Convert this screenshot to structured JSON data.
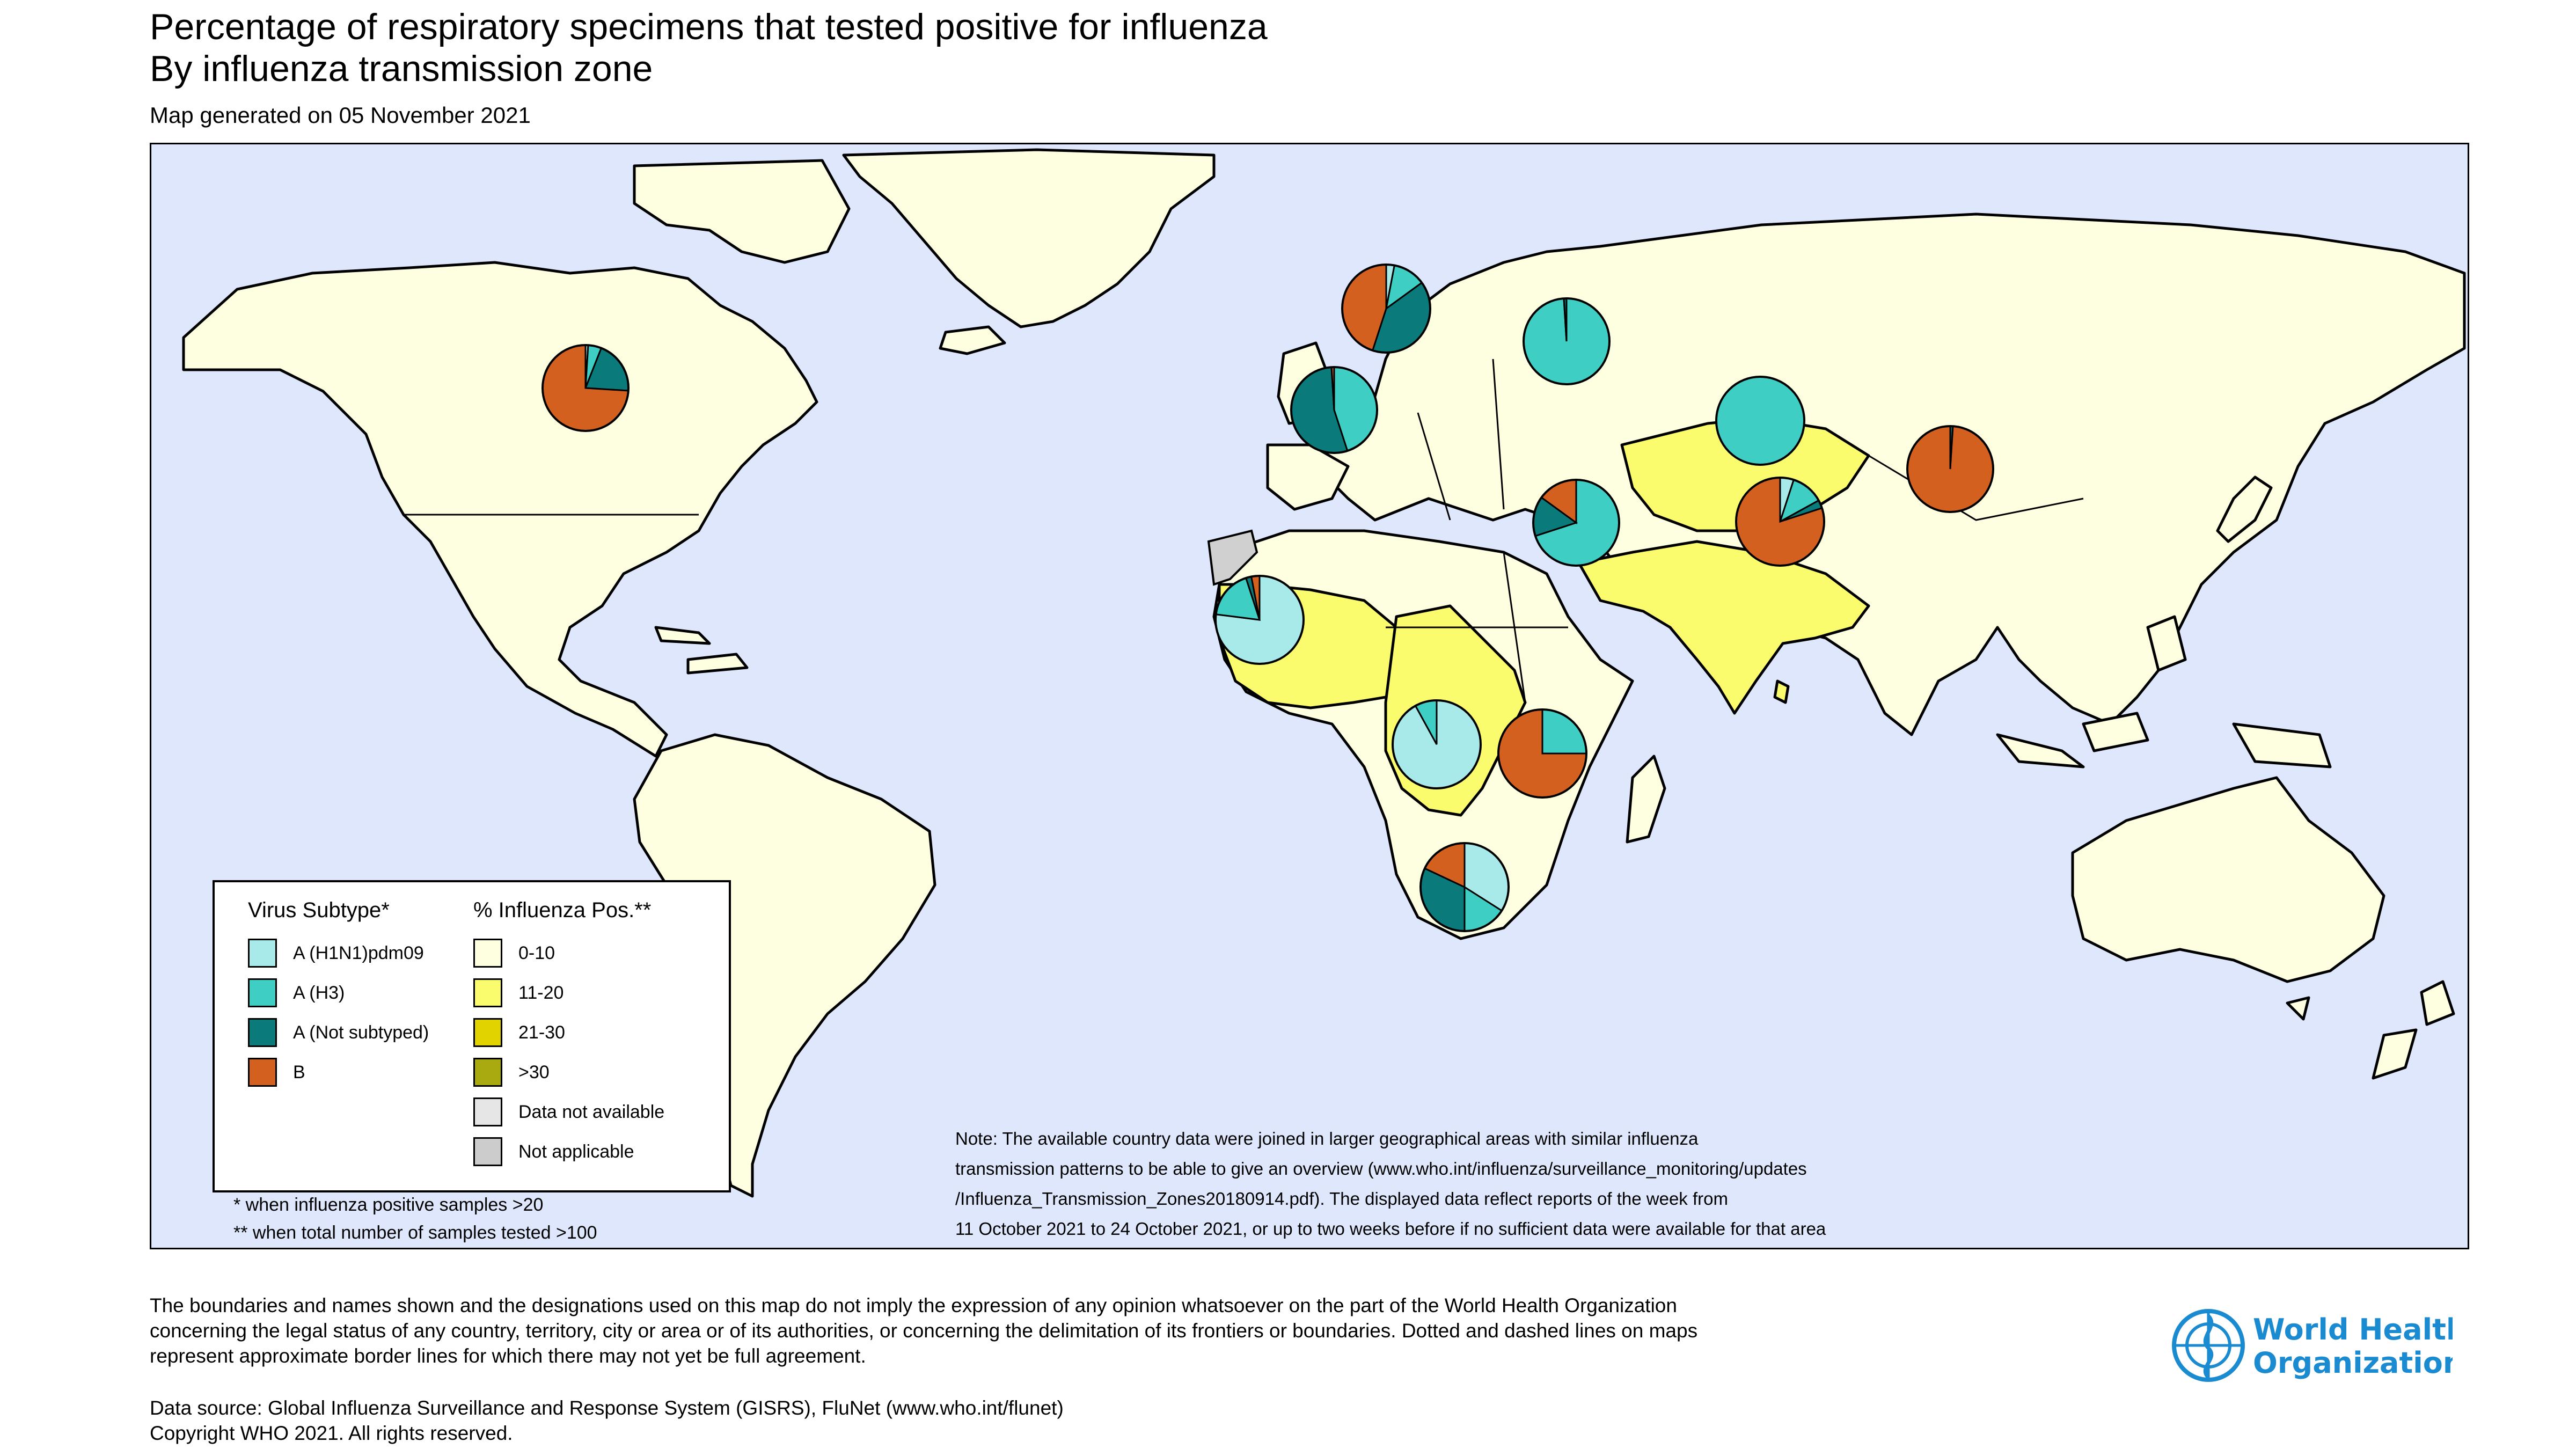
{
  "header": {
    "title_line1": "Percentage of respiratory specimens that tested positive for influenza",
    "title_line2": "By influenza transmission zone",
    "generated": "Map generated on 05 November 2021"
  },
  "legend": {
    "subtype_heading": "Virus Subtype*",
    "positivity_heading": "% Influenza Pos.**",
    "subtypes": [
      {
        "label": "A (H1N1)pdm09",
        "color": "#a8eaea"
      },
      {
        "label": "A (H3)",
        "color": "#3fcec4"
      },
      {
        "label": "A (Not subtyped)",
        "color": "#0b7a7a"
      },
      {
        "label": "B",
        "color": "#d4601f"
      }
    ],
    "positivity": [
      {
        "label": "0-10",
        "color": "#fefee0"
      },
      {
        "label": "11-20",
        "color": "#fbfb6e"
      },
      {
        "label": "21-30",
        "color": "#e1d300"
      },
      {
        "label": ">30",
        "color": "#a8aa10"
      },
      {
        "label": "Data not available",
        "color": "#e6e6e6"
      },
      {
        "label": "Not applicable",
        "color": "#cccccc"
      }
    ],
    "footnote1": "* when influenza positive samples >20",
    "footnote2": "** when total number of samples tested >100"
  },
  "note": {
    "line1": "Note: The available country data were joined in larger geographical areas with similar influenza",
    "line2": "transmission patterns to be able to give an overview (www.who.int/influenza/surveillance_monitoring/updates",
    "line3": "/Influenza_Transmission_Zones20180914.pdf). The displayed data reflect reports of the week from",
    "line4": "11 October 2021 to 24 October 2021, or up to two weeks before if no sufficient data were available for that area"
  },
  "disclaimer": {
    "line1": "The boundaries and names shown and the designations used on this map do not imply the expression of any opinion whatsoever on the part of the World Health Organization",
    "line2": "concerning the legal status of any country, territory, city or area or of its authorities, or concerning the delimitation of its frontiers or boundaries. Dotted and dashed lines on maps",
    "line3": "represent approximate border lines for which there may not yet be full agreement."
  },
  "source": {
    "line1": "Data source: Global Influenza Surveillance and Response System (GISRS), FluNet (www.who.int/flunet)",
    "line2": "Copyright WHO 2021. All rights reserved."
  },
  "logo": {
    "line1": "World Health",
    "line2": "Organization"
  },
  "colors": {
    "ocean": "#dfe7fd",
    "land_0_10": "#fefee0",
    "land_11_20": "#fbfb6e",
    "not_applicable": "#d0d0d0",
    "who_blue": "#1a8ad1"
  },
  "chart_data": {
    "type": "pie",
    "series_order": [
      "A (H1N1)pdm09",
      "A (H3)",
      "A (Not subtyped)",
      "B"
    ],
    "pies": [
      {
        "zone": "North America",
        "values": [
          1,
          5,
          20,
          74
        ]
      },
      {
        "zone": "Northern Europe",
        "values": [
          3,
          12,
          40,
          45
        ]
      },
      {
        "zone": "South West Europe",
        "values": [
          0,
          45,
          54,
          1
        ]
      },
      {
        "zone": "Eastern Europe",
        "values": [
          0,
          99,
          1,
          0
        ]
      },
      {
        "zone": "Central Asia",
        "values": [
          0,
          100,
          0,
          0
        ]
      },
      {
        "zone": "Western Asia",
        "values": [
          0,
          70,
          15,
          15
        ]
      },
      {
        "zone": "Southern Asia",
        "values": [
          5,
          12,
          3,
          80
        ]
      },
      {
        "zone": "Eastern Asia",
        "values": [
          0,
          0,
          1,
          99
        ]
      },
      {
        "zone": "Western Africa",
        "values": [
          77,
          18,
          2,
          3
        ]
      },
      {
        "zone": "Middle Africa",
        "values": [
          92,
          8,
          0,
          0
        ]
      },
      {
        "zone": "Eastern Africa",
        "values": [
          0,
          25,
          0,
          75
        ]
      },
      {
        "zone": "Southern Africa",
        "values": [
          34,
          16,
          32,
          18
        ]
      }
    ]
  }
}
